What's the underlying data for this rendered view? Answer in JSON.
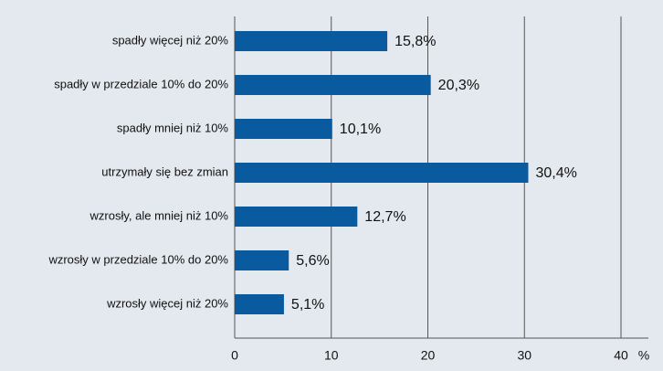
{
  "chart_data": {
    "type": "bar",
    "orientation": "horizontal",
    "categories": [
      "spadły więcej niż 20%",
      "spadły w przedziale 10% do 20%",
      "spadły mniej niż 10%",
      "utrzymały się bez zmian",
      "wzrosły, ale mniej niż 10%",
      "wzrosły w przedziale 10% do 20%",
      "wzrosły więcej niż 20%"
    ],
    "values": [
      15.8,
      20.3,
      10.1,
      30.4,
      12.7,
      5.6,
      5.1
    ],
    "value_labels": [
      "15,8%",
      "20,3%",
      "10,1%",
      "30,4%",
      "12,7%",
      "5,6%",
      "5,1%"
    ],
    "color": "#0a5aa0",
    "xlim": [
      0,
      40
    ],
    "xticks": [
      0,
      10,
      20,
      30,
      40
    ],
    "x_label": "%",
    "grid": true
  }
}
